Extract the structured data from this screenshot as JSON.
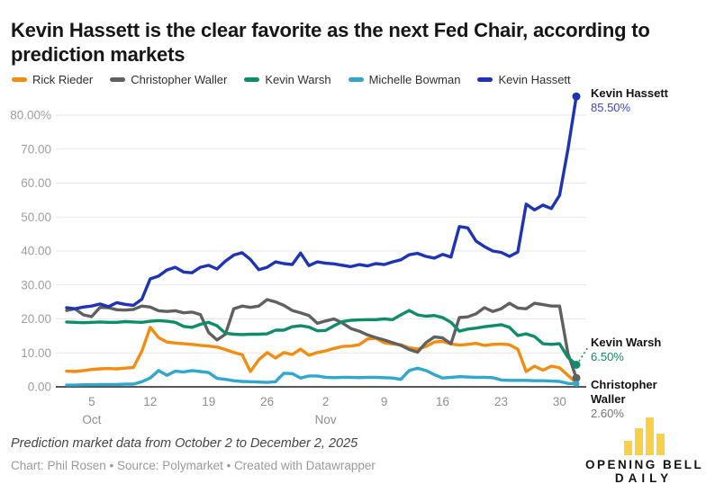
{
  "title": "Kevin Hassett is the clear favorite as the next Fed Chair, according to prediction markets",
  "legend": [
    {
      "label": "Rick Rieder",
      "color": "#F28D11"
    },
    {
      "label": "Christopher Waller",
      "color": "#606060"
    },
    {
      "label": "Kevin Warsh",
      "color": "#0F8C6C"
    },
    {
      "label": "Michelle Bowman",
      "color": "#2FA7CE"
    },
    {
      "label": "Kevin Hassett",
      "color": "#1F33B5"
    }
  ],
  "chart_data": {
    "type": "line",
    "title": "Kevin Hassett is the clear favorite as the next Fed Chair, according to prediction markets",
    "x_range_note": "daily values, October 2 to December 2, 2025",
    "ylim": [
      0,
      90
    ],
    "grid": "horizontal",
    "y_axis": {
      "tick_values": [
        0,
        10,
        20,
        30,
        40,
        50,
        60,
        70,
        80
      ],
      "tick_labels": [
        "0.00",
        "10.00",
        "20.00",
        "30.00",
        "40.00",
        "50.00",
        "60.00",
        "70.00",
        "80.00%"
      ]
    },
    "x_axis": {
      "tick_days": [
        3,
        10,
        17,
        24,
        31,
        38,
        45,
        52,
        59
      ],
      "tick_labels": [
        "5",
        "12",
        "19",
        "26",
        "2",
        "9",
        "16",
        "23",
        "30"
      ],
      "month_labels": [
        {
          "label": "Oct",
          "day": 3
        },
        {
          "label": "Nov",
          "day": 31
        }
      ]
    },
    "series": [
      {
        "name": "Rick Rieder",
        "color": "#F28D11",
        "end_dot": false,
        "values": [
          4.6,
          4.5,
          4.8,
          5.1,
          5.3,
          5.4,
          5.3,
          5.5,
          5.7,
          10.5,
          17.5,
          14.5,
          13.2,
          12.9,
          12.7,
          12.5,
          12.2,
          12.0,
          11.7,
          11.0,
          10.1,
          9.5,
          4.5,
          8.0,
          10.1,
          8.5,
          10.1,
          9.5,
          11.1,
          9.3,
          10.1,
          10.6,
          11.3,
          11.9,
          12.0,
          12.4,
          14.1,
          14.3,
          13.0,
          12.6,
          12.4,
          11.5,
          11.1,
          11.9,
          13.2,
          13.4,
          12.6,
          12.3,
          12.5,
          12.8,
          12.2,
          12.5,
          12.6,
          12.4,
          11.1,
          4.5,
          6.1,
          4.9,
          6.1,
          5.6,
          3.4,
          1.2
        ]
      },
      {
        "name": "Christopher Waller",
        "color": "#606060",
        "end_dot": true,
        "values": [
          22.5,
          23.0,
          21.2,
          20.7,
          23.4,
          23.3,
          22.7,
          22.6,
          22.8,
          23.8,
          23.5,
          22.4,
          22.2,
          22.4,
          21.8,
          22.0,
          21.3,
          16.0,
          13.8,
          15.5,
          23.0,
          23.8,
          23.4,
          23.8,
          25.7,
          25.0,
          24.0,
          22.5,
          21.8,
          21.0,
          18.7,
          19.4,
          20.0,
          18.8,
          17.2,
          16.4,
          15.3,
          14.5,
          13.8,
          13.0,
          12.2,
          11.0,
          10.2,
          13.0,
          14.7,
          14.4,
          12.7,
          20.4,
          20.6,
          21.5,
          23.3,
          22.2,
          23.0,
          24.6,
          23.2,
          23.0,
          24.6,
          24.2,
          23.8,
          23.8,
          9.8,
          2.6
        ]
      },
      {
        "name": "Kevin Warsh",
        "color": "#0F8C6C",
        "end_dot": true,
        "values": [
          19.1,
          19.0,
          18.9,
          19.0,
          19.1,
          19.0,
          19.0,
          19.2,
          19.1,
          19.0,
          19.3,
          19.5,
          19.3,
          19.0,
          17.8,
          17.5,
          18.4,
          19.0,
          18.0,
          15.8,
          15.5,
          15.4,
          15.5,
          15.5,
          15.6,
          16.7,
          16.7,
          17.7,
          18.0,
          17.6,
          16.5,
          16.6,
          18.0,
          19.2,
          19.6,
          19.7,
          19.8,
          19.8,
          20.0,
          19.8,
          21.2,
          22.5,
          21.2,
          20.8,
          21.0,
          20.4,
          19.0,
          16.4,
          17.0,
          17.3,
          17.7,
          18.0,
          18.3,
          17.5,
          15.1,
          15.6,
          14.8,
          12.7,
          12.5,
          12.7,
          8.7,
          6.5
        ]
      },
      {
        "name": "Michelle Bowman",
        "color": "#2FA7CE",
        "end_dot": true,
        "values": [
          0.5,
          0.5,
          0.6,
          0.6,
          0.7,
          0.7,
          0.7,
          0.8,
          0.8,
          1.5,
          2.6,
          4.8,
          3.4,
          4.6,
          4.4,
          4.8,
          4.5,
          4.2,
          2.5,
          2.2,
          1.8,
          1.6,
          1.5,
          1.4,
          1.3,
          1.5,
          4.0,
          3.9,
          2.6,
          3.2,
          3.2,
          2.8,
          2.7,
          2.8,
          2.8,
          2.7,
          2.8,
          2.8,
          2.7,
          2.6,
          2.2,
          4.8,
          5.5,
          4.8,
          3.6,
          2.6,
          2.8,
          3.0,
          2.9,
          2.8,
          2.8,
          2.7,
          2.0,
          1.9,
          1.9,
          1.9,
          1.8,
          1.8,
          1.7,
          1.6,
          1.0,
          0.9
        ]
      },
      {
        "name": "Kevin Hassett",
        "color": "#1F33B5",
        "end_dot": true,
        "values": [
          23.3,
          23.0,
          23.5,
          23.8,
          24.4,
          23.6,
          24.8,
          24.3,
          24.0,
          25.8,
          31.8,
          32.6,
          34.4,
          35.2,
          33.8,
          33.6,
          35.2,
          35.8,
          34.7,
          37.0,
          38.8,
          39.5,
          37.5,
          34.5,
          35.2,
          36.8,
          36.3,
          36.0,
          39.4,
          35.7,
          36.8,
          36.4,
          36.2,
          35.8,
          35.4,
          36.0,
          35.6,
          36.3,
          36.0,
          36.8,
          37.4,
          38.9,
          39.3,
          38.4,
          37.9,
          39.0,
          38.2,
          47.2,
          46.8,
          42.9,
          41.3,
          40.0,
          39.6,
          38.4,
          39.7,
          53.8,
          52.1,
          53.5,
          52.5,
          56.4,
          70.0,
          85.5
        ]
      }
    ],
    "annotations": {
      "hassett": {
        "name": "Kevin Hassett",
        "value": "85.50%",
        "value_color": "#4145C9"
      },
      "warsh": {
        "name": "Kevin Warsh",
        "value": "6.50%",
        "value_color": "#0F8C6C"
      },
      "waller": {
        "name": "Christopher Waller",
        "value": "2.60%",
        "value_color": "#757575"
      }
    },
    "colors": {
      "grid": "#e7e7e7",
      "baseline": "#3f3f3f",
      "axis_text": "#9e9e9e",
      "tick_text": "#8f8f8f"
    }
  },
  "footer": {
    "note": "Prediction market data from October 2 to December 2, 2025",
    "credit": "Chart: Phil Rosen • Source: Polymarket • Created with Datawrapper"
  },
  "logo": {
    "line1": "OPENING BELL",
    "line2": "DAILY",
    "bar_color": "#F9D04A",
    "bars": [
      16,
      30,
      42,
      24
    ]
  }
}
